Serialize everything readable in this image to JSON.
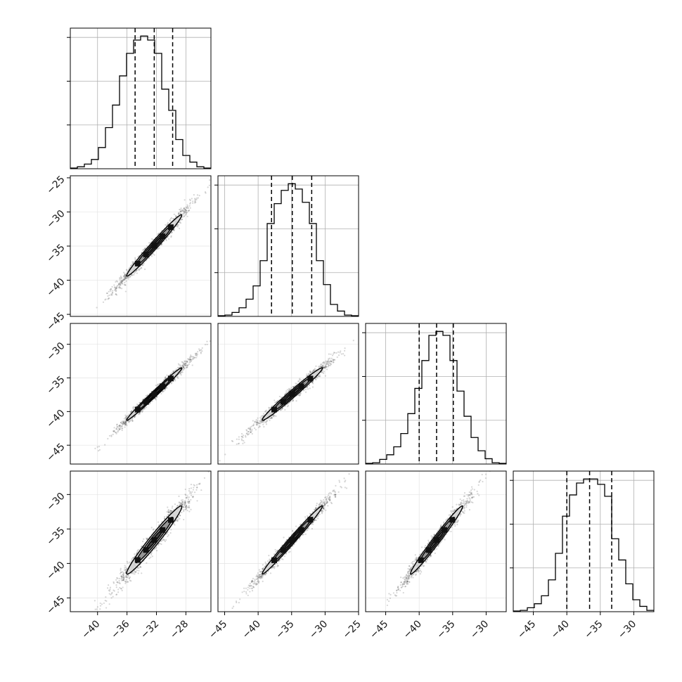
{
  "chart_data": {
    "type": "corner",
    "params": 4,
    "hist_color": "#000000",
    "scatter_color": "#000000",
    "grid_color": "#b0b0b0",
    "quantile_line_style": "dashed",
    "grid": true,
    "axes": [
      {
        "xlim": [
          -43.7,
          -24.6
        ],
        "ticks": [
          -40,
          -36,
          -32,
          -28
        ],
        "tick_labels": [
          "−40",
          "−36",
          "−32",
          "−28"
        ],
        "quantiles": [
          -34.9,
          -32.3,
          -29.8
        ]
      },
      {
        "xlim": [
          -46,
          -25
        ],
        "ticks": [
          -45,
          -40,
          -35,
          -30,
          -25
        ],
        "tick_labels": [
          "−45",
          "−40",
          "−35",
          "−30",
          "−25"
        ],
        "quantiles": [
          -38.0,
          -34.9,
          -32.0
        ]
      },
      {
        "xlim": [
          -48,
          -27
        ],
        "ticks": [
          -45,
          -40,
          -35,
          -30
        ],
        "tick_labels": [
          "−45",
          "−40",
          "−35",
          "−30"
        ],
        "quantiles": [
          -40.0,
          -37.4,
          -34.9
        ]
      },
      {
        "xlim": [
          -48,
          -27
        ],
        "ticks": [
          -45,
          -40,
          -35,
          -30
        ],
        "tick_labels": [
          "−45",
          "−40",
          "−35",
          "−30"
        ],
        "quantiles": [
          -40.0,
          -36.6,
          -33.3
        ]
      }
    ],
    "row_ranges": {
      "1": {
        "ylim": [
          -45.3,
          -24.7
        ],
        "ticks": [
          -45,
          -40,
          -35,
          -30,
          -25
        ],
        "tick_labels": [
          "−45",
          "−40",
          "−35",
          "−30",
          "−25"
        ]
      },
      "2": {
        "ylim": [
          -47.8,
          -26.9
        ],
        "ticks": [
          -45,
          -40,
          -35,
          -30
        ],
        "tick_labels": [
          "−45",
          "−40",
          "−35",
          "−30"
        ]
      },
      "3": {
        "ylim": [
          -47,
          -26.6
        ],
        "ticks": [
          -45,
          -40,
          -35,
          -30
        ],
        "tick_labels": [
          "−45",
          "−40",
          "−35",
          "−30"
        ]
      }
    },
    "histograms": [
      {
        "bin_edges": [
          -43.7,
          -42.745,
          -41.79,
          -40.835,
          -39.88,
          -38.925,
          -37.97,
          -37.015,
          -36.06,
          -35.105,
          -34.15,
          -33.195,
          -32.24,
          -31.285,
          -30.33,
          -29.375,
          -28.42,
          -27.465,
          -26.51,
          -25.555,
          -24.6
        ],
        "counts": [
          0.005,
          0.015,
          0.035,
          0.07,
          0.16,
          0.31,
          0.48,
          0.7,
          0.87,
          0.97,
          1.0,
          0.97,
          0.87,
          0.6,
          0.44,
          0.22,
          0.1,
          0.05,
          0.015,
          0.005
        ]
      },
      {
        "bin_edges": [
          -46.0,
          -44.95,
          -43.9,
          -42.85,
          -41.8,
          -40.75,
          -39.7,
          -38.65,
          -37.6,
          -36.55,
          -35.5,
          -34.45,
          -33.4,
          -32.35,
          -31.3,
          -30.25,
          -29.2,
          -28.15,
          -27.1,
          -26.05,
          -25.0
        ],
        "counts": [
          0.005,
          0.01,
          0.03,
          0.065,
          0.13,
          0.23,
          0.42,
          0.7,
          0.85,
          0.95,
          1.0,
          0.96,
          0.86,
          0.7,
          0.42,
          0.24,
          0.09,
          0.04,
          0.01,
          0.005
        ]
      },
      {
        "bin_edges": [
          -48.0,
          -46.95,
          -45.9,
          -44.85,
          -43.8,
          -42.75,
          -41.7,
          -40.65,
          -39.6,
          -38.55,
          -37.5,
          -36.45,
          -35.4,
          -34.35,
          -33.3,
          -32.25,
          -31.2,
          -30.15,
          -29.1,
          -28.05,
          -27.0
        ],
        "counts": [
          0.005,
          0.01,
          0.035,
          0.07,
          0.13,
          0.23,
          0.38,
          0.57,
          0.78,
          0.97,
          1.0,
          0.97,
          0.78,
          0.55,
          0.36,
          0.2,
          0.1,
          0.04,
          0.01,
          0.005
        ]
      },
      {
        "bin_edges": [
          -48.0,
          -46.95,
          -45.9,
          -44.85,
          -43.8,
          -42.75,
          -41.7,
          -40.65,
          -39.6,
          -38.55,
          -37.5,
          -36.45,
          -35.4,
          -34.35,
          -33.3,
          -32.25,
          -31.2,
          -30.15,
          -29.1,
          -28.05,
          -27.0
        ],
        "counts": [
          0.005,
          0.01,
          0.03,
          0.06,
          0.12,
          0.24,
          0.44,
          0.72,
          0.88,
          0.97,
          1.0,
          1.0,
          0.96,
          0.87,
          0.55,
          0.39,
          0.21,
          0.09,
          0.04,
          0.01
        ]
      }
    ],
    "pairs": [
      {
        "row": 1,
        "col": 0,
        "mean": [
          -32.3,
          -34.9
        ],
        "std": [
          2.5,
          3.0
        ],
        "corr": 0.985
      },
      {
        "row": 2,
        "col": 0,
        "mean": [
          -32.3,
          -37.4
        ],
        "std": [
          2.5,
          2.6
        ],
        "corr": 0.99
      },
      {
        "row": 2,
        "col": 1,
        "mean": [
          -34.9,
          -37.4
        ],
        "std": [
          3.0,
          2.6
        ],
        "corr": 0.985
      },
      {
        "row": 3,
        "col": 0,
        "mean": [
          -32.3,
          -36.6
        ],
        "std": [
          2.5,
          3.3
        ],
        "corr": 0.975
      },
      {
        "row": 3,
        "col": 1,
        "mean": [
          -34.9,
          -36.6
        ],
        "std": [
          3.0,
          3.3
        ],
        "corr": 0.99
      },
      {
        "row": 3,
        "col": 2,
        "mean": [
          -37.4,
          -36.6
        ],
        "std": [
          2.6,
          3.3
        ],
        "corr": 0.985
      }
    ],
    "contour_levels": [
      0.5,
      1.0,
      1.5
    ],
    "contour_fills": [
      "#dadada",
      "#8f8f8f",
      "#383838"
    ]
  }
}
